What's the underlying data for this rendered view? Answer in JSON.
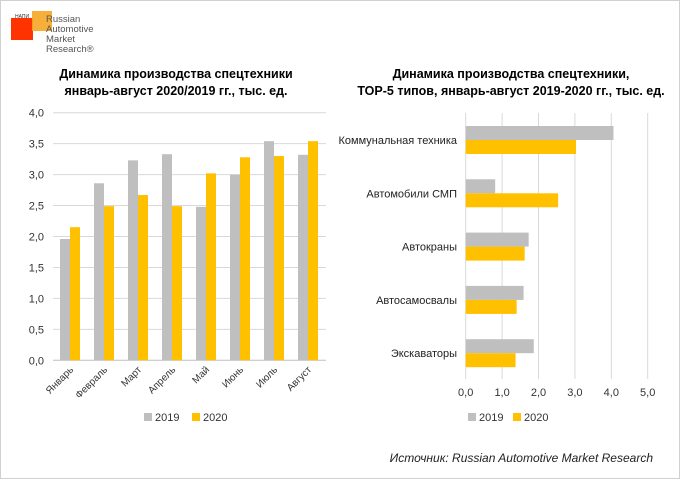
{
  "logo": {
    "small": "НАПИ",
    "lines": [
      "Russian",
      "Automotive",
      "Market",
      "Research®"
    ]
  },
  "source": "Источник: Russian Automotive Market Research",
  "colors": {
    "s2019": "#bfbfbf",
    "s2020": "#ffc000",
    "grid": "#d9d9d9"
  },
  "chart_data": [
    {
      "type": "bar",
      "title": [
        "Динамика производства спецтехники",
        "январь-август 2020/2019 гг., тыс. ед."
      ],
      "categories": [
        "Январь",
        "Февраль",
        "Март",
        "Апрель",
        "Май",
        "Июнь",
        "Июль",
        "Август"
      ],
      "series": [
        {
          "name": "2019",
          "values": [
            1.96,
            2.86,
            3.23,
            3.33,
            2.48,
            3.0,
            3.54,
            3.32
          ]
        },
        {
          "name": "2020",
          "values": [
            2.15,
            2.49,
            2.67,
            2.49,
            3.02,
            3.28,
            3.3,
            3.54
          ]
        }
      ],
      "ylim": [
        0,
        4
      ],
      "yticks": [
        "0,0",
        "0,5",
        "1,0",
        "1,5",
        "2,0",
        "2,5",
        "3,0",
        "3,5",
        "4,0"
      ],
      "grid": true,
      "legend": "bottom"
    },
    {
      "type": "bar",
      "orientation": "horizontal",
      "title": [
        "Динамика производства спецтехники,",
        "ТОР-5 типов, январь-август 2019-2020 гг., тыс. ед."
      ],
      "categories": [
        "Коммунальная техника",
        "Автомобили СМП",
        "Автокраны",
        "Автосамосвалы",
        "Экскаваторы"
      ],
      "series": [
        {
          "name": "2019",
          "values": [
            4.06,
            0.81,
            1.73,
            1.59,
            1.87
          ]
        },
        {
          "name": "2020",
          "values": [
            3.03,
            2.54,
            1.62,
            1.4,
            1.37
          ]
        }
      ],
      "xlim": [
        0,
        5
      ],
      "xticks": [
        "0,0",
        "1,0",
        "2,0",
        "3,0",
        "4,0",
        "5,0"
      ],
      "grid": true,
      "legend": "bottom"
    }
  ]
}
